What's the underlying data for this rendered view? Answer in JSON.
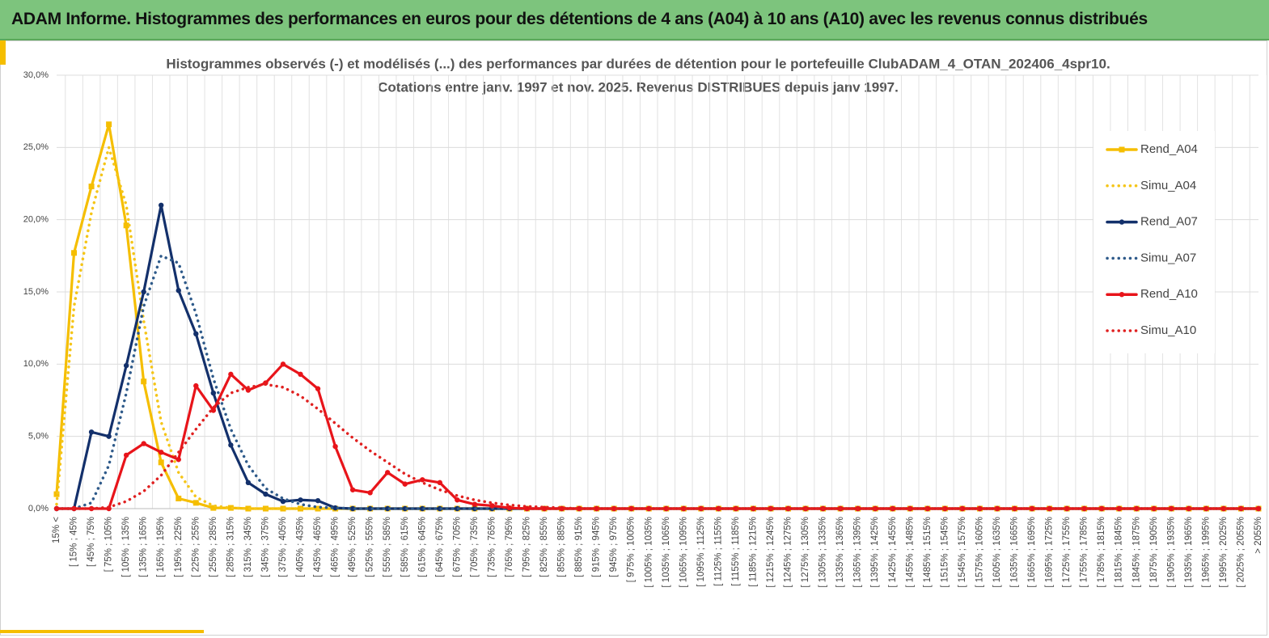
{
  "header": "ADAM Informe. Histogrammes des performances en euros pour des détentions de 4 ans (A04) à 10 ans (A10) avec les revenus connus distribués",
  "chart_data": {
    "type": "line",
    "title": [
      "Histogrammes observés (-) et modélisés (...) des performances par durées de détention pour le portefeuille ClubADAM_4_OTAN_202406_4spr10.",
      "Cotations entre janv. 1997 et nov. 2025. Revenus DISTRIBUES depuis janv 1997."
    ],
    "categories": [
      "15% <",
      "[ 15% ; 45%",
      "[ 45% ; 75%",
      "[ 75% ; 105%",
      "[ 105% ; 135%",
      "[ 135% ; 165%",
      "[ 165% ; 195%",
      "[ 195% ; 225%",
      "[ 225% ; 255%",
      "[ 255% ; 285%",
      "[ 285% ; 315%",
      "[ 315% ; 345%",
      "[ 345% ; 375%",
      "[ 375% ; 405%",
      "[ 405% ; 435%",
      "[ 435% ; 465%",
      "[ 465% ; 495%",
      "[ 495% ; 525%",
      "[ 525% ; 555%",
      "[ 555% ; 585%",
      "[ 585% ; 615%",
      "[ 615% ; 645%",
      "[ 645% ; 675%",
      "[ 675% ; 705%",
      "[ 705% ; 735%",
      "[ 735% ; 765%",
      "[ 765% ; 795%",
      "[ 795% ; 825%",
      "[ 825% ; 855%",
      "[ 855% ; 885%",
      "[ 885% ; 915%",
      "[ 915% ; 945%",
      "[ 945% ; 975%",
      "[ 975% ; 1005%",
      "[ 1005% ; 1035%",
      "[ 1035% ; 1065%",
      "[ 1065% ; 1095%",
      "[ 1095% ; 1125%",
      "[ 1125% ; 1155%",
      "[ 1155% ; 1185%",
      "[ 1185% ; 1215%",
      "[ 1215% ; 1245%",
      "[ 1245% ; 1275%",
      "[ 1275% ; 1305%",
      "[ 1305% ; 1335%",
      "[ 1335% ; 1365%",
      "[ 1365% ; 1395%",
      "[ 1395% ; 1425%",
      "[ 1425% ; 1455%",
      "[ 1455% ; 1485%",
      "[ 1485% ; 1515%",
      "[ 1515% ; 1545%",
      "[ 1545% ; 1575%",
      "[ 1575% ; 1605%",
      "[ 1605% ; 1635%",
      "[ 1635% ; 1665%",
      "[ 1665% ; 1695%",
      "[ 1695% ; 1725%",
      "[ 1725% ; 1755%",
      "[ 1755% ; 1785%",
      "[ 1785% ; 1815%",
      "[ 1815% ; 1845%",
      "[ 1845% ; 1875%",
      "[ 1875% ; 1905%",
      "[ 1905% ; 1935%",
      "[ 1935% ; 1965%",
      "[ 1965% ; 1995%",
      "[ 1995% ; 2025%",
      "[ 2025% ; 2055%",
      "> 2055%"
    ],
    "series": [
      {
        "name": "Rend_A04",
        "color": "#f5be00",
        "dash": "solid",
        "marker": "square",
        "values": [
          1.0,
          17.7,
          22.3,
          26.6,
          19.6,
          8.8,
          3.2,
          0.7,
          0.4,
          0.05,
          0.05,
          0,
          0,
          0,
          0,
          0,
          0,
          0,
          0,
          0,
          0,
          0,
          0,
          0,
          0,
          0,
          0,
          0,
          0,
          0,
          0,
          0,
          0,
          0,
          0,
          0,
          0,
          0,
          0,
          0,
          0,
          0,
          0,
          0,
          0,
          0,
          0,
          0,
          0,
          0,
          0,
          0,
          0,
          0,
          0,
          0,
          0,
          0,
          0,
          0,
          0,
          0,
          0,
          0,
          0,
          0,
          0,
          0,
          0,
          0
        ]
      },
      {
        "name": "Simu_A04",
        "color": "#f5c518",
        "dash": "dotted",
        "marker": "none",
        "values": [
          0.3,
          14,
          20.5,
          25,
          21,
          13,
          6,
          2.5,
          0.8,
          0.2,
          0.05,
          0,
          0,
          0,
          0,
          0,
          0,
          0,
          0,
          0,
          0,
          0,
          0,
          0,
          0,
          0,
          0,
          0,
          0,
          0,
          0,
          0,
          0,
          0,
          0,
          0,
          0,
          0,
          0,
          0,
          0,
          0,
          0,
          0,
          0,
          0,
          0,
          0,
          0,
          0,
          0,
          0,
          0,
          0,
          0,
          0,
          0,
          0,
          0,
          0,
          0,
          0,
          0,
          0,
          0,
          0,
          0,
          0,
          0,
          0
        ]
      },
      {
        "name": "Rend_A07",
        "color": "#13306b",
        "dash": "solid",
        "marker": "circle",
        "values": [
          0,
          0,
          5.3,
          5.0,
          9.9,
          15.0,
          21.0,
          15.1,
          12.1,
          8.0,
          4.4,
          1.8,
          1.0,
          0.5,
          0.6,
          0.55,
          0.05,
          0,
          0,
          0,
          0,
          0,
          0,
          0,
          0,
          0,
          0,
          0,
          0,
          0,
          0,
          0,
          0,
          0,
          0,
          0,
          0,
          0,
          0,
          0,
          0,
          0,
          0,
          0,
          0,
          0,
          0,
          0,
          0,
          0,
          0,
          0,
          0,
          0,
          0,
          0,
          0,
          0,
          0,
          0,
          0,
          0,
          0,
          0,
          0,
          0,
          0,
          0,
          0,
          0
        ]
      },
      {
        "name": "Simu_A07",
        "color": "#2e5a8a",
        "dash": "dotted",
        "marker": "none",
        "values": [
          0,
          0,
          0.4,
          3,
          8,
          14,
          17.5,
          17,
          13.5,
          9,
          5.5,
          3,
          1.4,
          0.7,
          0.3,
          0.1,
          0.05,
          0,
          0,
          0,
          0,
          0,
          0,
          0,
          0,
          0,
          0,
          0,
          0,
          0,
          0,
          0,
          0,
          0,
          0,
          0,
          0,
          0,
          0,
          0,
          0,
          0,
          0,
          0,
          0,
          0,
          0,
          0,
          0,
          0,
          0,
          0,
          0,
          0,
          0,
          0,
          0,
          0,
          0,
          0,
          0,
          0,
          0,
          0,
          0,
          0,
          0,
          0,
          0,
          0
        ]
      },
      {
        "name": "Rend_A10",
        "color": "#e8141a",
        "dash": "solid",
        "marker": "circle",
        "values": [
          0,
          0,
          0,
          0,
          3.7,
          4.5,
          3.9,
          3.4,
          8.5,
          6.8,
          9.3,
          8.2,
          8.7,
          10.0,
          9.3,
          8.3,
          4.3,
          1.3,
          1.1,
          2.5,
          1.7,
          2.0,
          1.8,
          0.6,
          0.3,
          0.2,
          0.05,
          0,
          0,
          0,
          0,
          0,
          0,
          0,
          0,
          0,
          0,
          0,
          0,
          0,
          0,
          0,
          0,
          0,
          0,
          0,
          0,
          0,
          0,
          0,
          0,
          0,
          0,
          0,
          0,
          0,
          0,
          0,
          0,
          0,
          0,
          0,
          0,
          0,
          0,
          0,
          0,
          0,
          0,
          0
        ]
      },
      {
        "name": "Simu_A10",
        "color": "#e02020",
        "dash": "dotted",
        "marker": "none",
        "values": [
          0,
          0,
          0,
          0.1,
          0.5,
          1.2,
          2.3,
          3.9,
          5.5,
          7,
          8,
          8.4,
          8.6,
          8.4,
          7.8,
          6.9,
          5.9,
          4.9,
          4.0,
          3.2,
          2.4,
          1.8,
          1.3,
          0.9,
          0.6,
          0.4,
          0.25,
          0.15,
          0.1,
          0.05,
          0,
          0,
          0,
          0,
          0,
          0,
          0,
          0,
          0,
          0,
          0,
          0,
          0,
          0,
          0,
          0,
          0,
          0,
          0,
          0,
          0,
          0,
          0,
          0,
          0,
          0,
          0,
          0,
          0,
          0,
          0,
          0,
          0,
          0,
          0,
          0,
          0,
          0,
          0,
          0
        ]
      }
    ],
    "ylim": [
      0,
      30
    ],
    "yticks": [
      {
        "value": 0,
        "label": "0,0%"
      },
      {
        "value": 5,
        "label": "5,0%"
      },
      {
        "value": 10,
        "label": "10,0%"
      },
      {
        "value": 15,
        "label": "15,0%"
      },
      {
        "value": 20,
        "label": "20,0%"
      },
      {
        "value": 25,
        "label": "25,0%"
      },
      {
        "value": 30,
        "label": "30,0%"
      }
    ],
    "grid": true,
    "legend": "right"
  }
}
